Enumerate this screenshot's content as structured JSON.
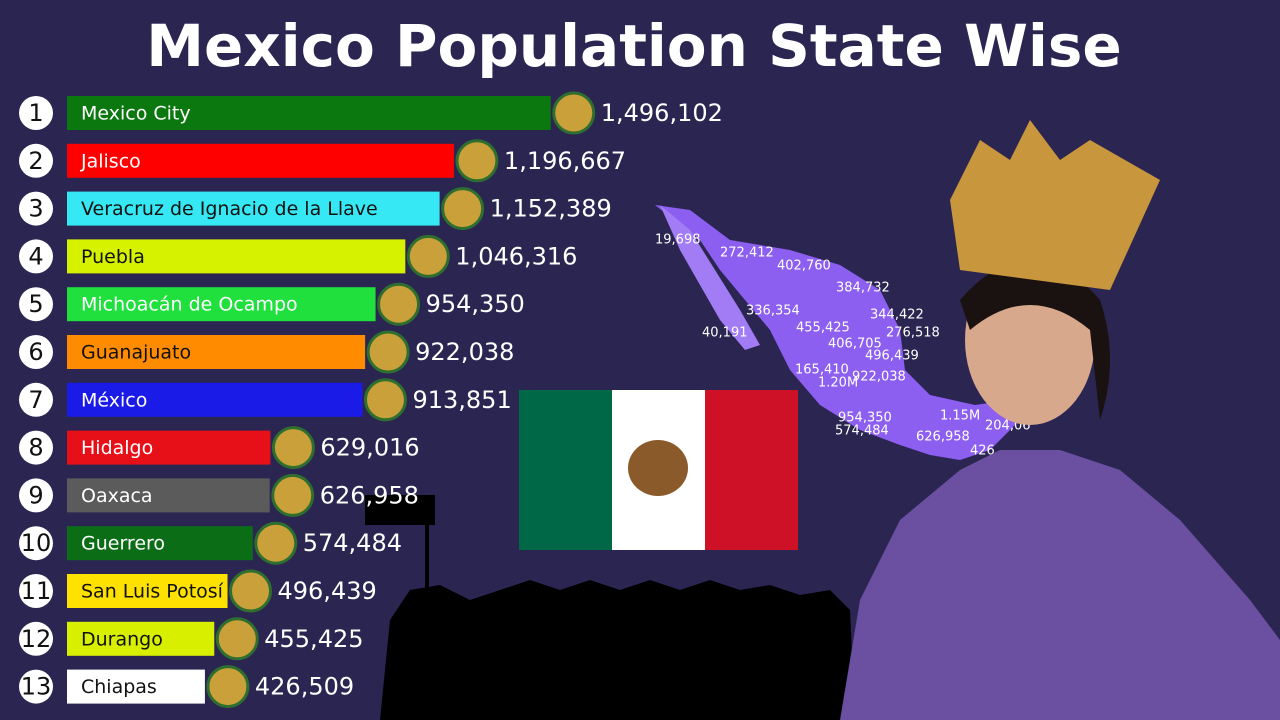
{
  "chart_data": {
    "type": "bar",
    "orientation": "horizontal",
    "title": "Mexico Population State Wise",
    "ranks": [
      1,
      2,
      3,
      4,
      5,
      6,
      7,
      8,
      9,
      10,
      11,
      12,
      13
    ],
    "categories": [
      "Mexico City",
      "Jalisco",
      "Veracruz de Ignacio de la Llave",
      "Puebla",
      "Michoacán de Ocampo",
      "Guanajuato",
      "México",
      "Hidalgo",
      "Oaxaca",
      "Guerrero",
      "San Luis Potosí",
      "Durango",
      "Chiapas"
    ],
    "values": [
      1496102,
      1196667,
      1152389,
      1046316,
      954350,
      922038,
      913851,
      629016,
      626958,
      574484,
      496439,
      455425,
      426509
    ],
    "value_labels": [
      "1,496,102",
      "1,196,667",
      "1,152,389",
      "1,046,316",
      "954,350",
      "922,038",
      "913,851",
      "629,016",
      "626,958",
      "574,484",
      "496,439",
      "455,425",
      "426,509"
    ],
    "colors": [
      "#0b780f",
      "#ff0000",
      "#36e8f4",
      "#d6f200",
      "#1fe03c",
      "#ff8c00",
      "#1b1be8",
      "#e81018",
      "#5b5b5b",
      "#0b6e16",
      "#ffe100",
      "#d8f000",
      "#ffffff"
    ],
    "xlim": [
      0,
      1500000
    ],
    "map_labels": [
      "19,698",
      "272,412",
      "402,760",
      "384,732",
      "336,354",
      "344,422",
      "40,191",
      "455,425",
      "276,518",
      "406,705",
      "496,439",
      "165,410",
      "922,038",
      "1.20M",
      "954,350",
      "1.15M",
      "574,484",
      "626,958",
      "204,06",
      "426"
    ]
  }
}
